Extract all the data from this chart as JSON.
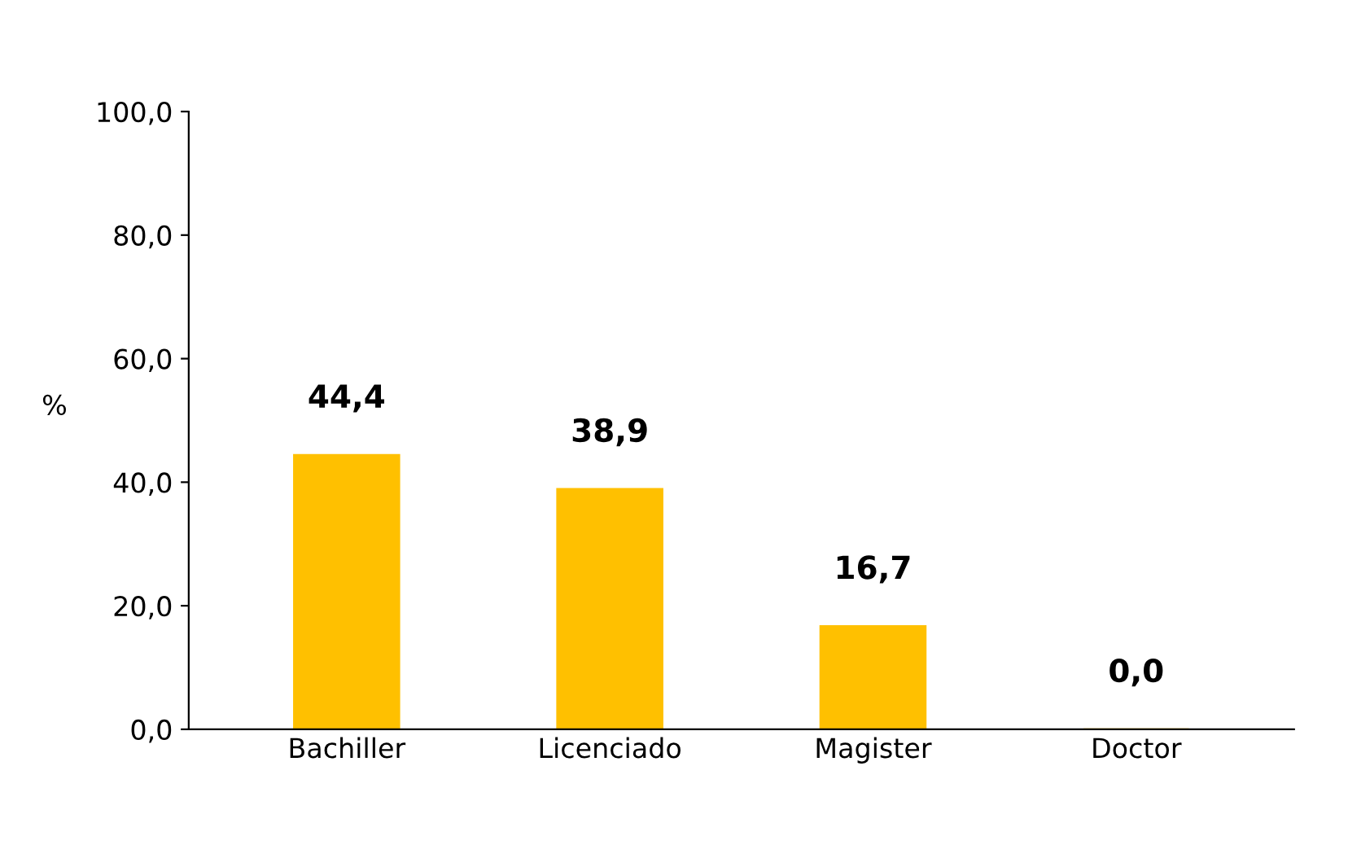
{
  "chart_data": {
    "type": "bar",
    "ylabel": "%",
    "categories": [
      "Bachiller",
      "Licenciado",
      "Magister",
      "Doctor"
    ],
    "values": [
      44.4,
      38.9,
      16.7,
      0.0
    ],
    "value_labels": [
      "44,4",
      "38,9",
      "16,7",
      "0,0"
    ],
    "color": "#ffc000",
    "ylim": [
      0,
      100
    ],
    "yticks": [
      {
        "value": 0,
        "label": "0,0"
      },
      {
        "value": 20,
        "label": "20,0"
      },
      {
        "value": 40,
        "label": "40,0"
      },
      {
        "value": 60,
        "label": "60,0"
      },
      {
        "value": 80,
        "label": "80,0"
      },
      {
        "value": 100,
        "label": "100,0"
      }
    ],
    "grid": false
  }
}
